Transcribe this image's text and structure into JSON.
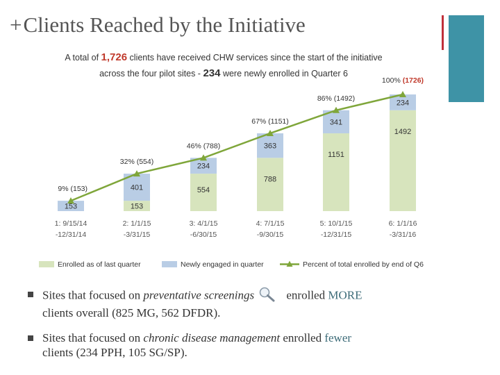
{
  "slide": {
    "title_prefix": "+",
    "title": "Clients Reached by the Initiative"
  },
  "chart_data": {
    "type": "bar",
    "stacked": true,
    "subtitle_line1": {
      "pre": "A total of ",
      "highlight": "1,726",
      "post": " clients have received CHW services since the start of the initiative"
    },
    "subtitle_line2": {
      "pre": "across the four pilot sites - ",
      "highlight": "234",
      "post": " were newly enrolled in Quarter 6"
    },
    "categories": [
      [
        "1: 9/15/14",
        "-12/31/14"
      ],
      [
        "2: 1/1/15",
        "-3/31/15"
      ],
      [
        "3: 4/1/15",
        "-6/30/15"
      ],
      [
        "4: 7/1/15",
        "-9/30/15"
      ],
      [
        "5: 10/1/15",
        "-12/31/15"
      ],
      [
        "6: 1/1/16",
        "-3/31/16"
      ]
    ],
    "series": [
      {
        "name": "Enrolled as of last quarter",
        "values": [
          0,
          153,
          554,
          788,
          1151,
          1492
        ],
        "labels": [
          "",
          "153",
          "554",
          "788",
          "1151",
          "1492"
        ],
        "color": "#d7e4bd"
      },
      {
        "name": "Newly engaged in quarter",
        "values": [
          153,
          401,
          234,
          363,
          341,
          234
        ],
        "labels": [
          "153",
          "401",
          "234",
          "363",
          "341",
          "234"
        ],
        "color": "#b9cde5"
      }
    ],
    "line": {
      "name": "Percent of total enrolled by end of Q6",
      "values": [
        153,
        554,
        788,
        1151,
        1492,
        1726
      ],
      "labels": [
        "9% (153)",
        "32% (554)",
        "46% (788)",
        "67% (1151)",
        "86% (1492)",
        "100% (1726)"
      ],
      "color": "#7fa63a"
    },
    "last_label": {
      "pre": "100% ",
      "highlight": "(1726)"
    },
    "ylim": [
      0,
      1726
    ],
    "highlight_color": "#c0392b",
    "legend_position": "bottom"
  },
  "bullets": [
    {
      "pre": "Sites that focused on ",
      "em": "preventative screenings",
      "mid": " enrolled ",
      "strong": "MORE",
      "post": " clients overall (825 MG, 562 DFDR).",
      "icon": "magnifying-glass-icon"
    },
    {
      "pre": "Sites that focused on ",
      "em": "chronic disease management",
      "mid": " enrolled ",
      "strong": "fewer",
      "post": " clients (234 PPH, 105 SG/SP)."
    }
  ]
}
